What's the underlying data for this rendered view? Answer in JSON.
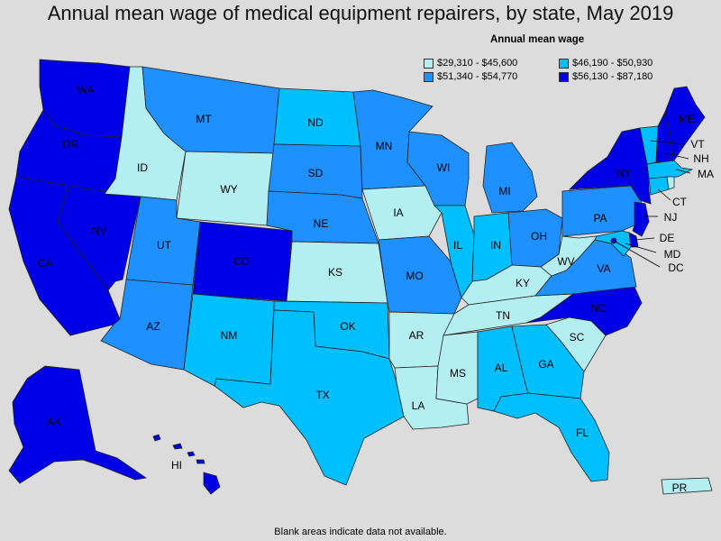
{
  "title": "Annual mean wage of medical equipment repairers, by state, May 2019",
  "legend": {
    "title": "Annual mean wage",
    "items": [
      {
        "label": "$29,310 - $45,600",
        "color": "#b3eef0"
      },
      {
        "label": "$46,190 - $50,930",
        "color": "#00bfff"
      },
      {
        "label": "$51,340 - $54,770",
        "color": "#1e90ff"
      },
      {
        "label": "$56,130 - $87,180",
        "color": "#0000e6"
      }
    ]
  },
  "note": "Blank areas indicate data not available.",
  "states": [
    {
      "code": "WA",
      "tier": 3
    },
    {
      "code": "OR",
      "tier": 3
    },
    {
      "code": "CA",
      "tier": 3
    },
    {
      "code": "NV",
      "tier": 3
    },
    {
      "code": "ID",
      "tier": 0
    },
    {
      "code": "MT",
      "tier": 2
    },
    {
      "code": "WY",
      "tier": 0
    },
    {
      "code": "UT",
      "tier": 2
    },
    {
      "code": "CO",
      "tier": 3
    },
    {
      "code": "AZ",
      "tier": 2
    },
    {
      "code": "NM",
      "tier": 1
    },
    {
      "code": "ND",
      "tier": 1
    },
    {
      "code": "SD",
      "tier": 2
    },
    {
      "code": "NE",
      "tier": 2
    },
    {
      "code": "KS",
      "tier": 0
    },
    {
      "code": "OK",
      "tier": 1
    },
    {
      "code": "TX",
      "tier": 1
    },
    {
      "code": "MN",
      "tier": 2
    },
    {
      "code": "IA",
      "tier": 0
    },
    {
      "code": "MO",
      "tier": 2
    },
    {
      "code": "AR",
      "tier": 0
    },
    {
      "code": "LA",
      "tier": 0
    },
    {
      "code": "WI",
      "tier": 2
    },
    {
      "code": "IL",
      "tier": 1
    },
    {
      "code": "MI",
      "tier": 2
    },
    {
      "code": "IN",
      "tier": 1
    },
    {
      "code": "OH",
      "tier": 2
    },
    {
      "code": "KY",
      "tier": 0
    },
    {
      "code": "TN",
      "tier": 0
    },
    {
      "code": "MS",
      "tier": 0
    },
    {
      "code": "AL",
      "tier": 1
    },
    {
      "code": "GA",
      "tier": 1
    },
    {
      "code": "FL",
      "tier": 1
    },
    {
      "code": "SC",
      "tier": 0
    },
    {
      "code": "NC",
      "tier": 3
    },
    {
      "code": "VA",
      "tier": 2
    },
    {
      "code": "WV",
      "tier": 0
    },
    {
      "code": "PA",
      "tier": 2
    },
    {
      "code": "NY",
      "tier": 3
    },
    {
      "code": "VT",
      "tier": 1
    },
    {
      "code": "NH",
      "tier": 3
    },
    {
      "code": "ME",
      "tier": 3
    },
    {
      "code": "MA",
      "tier": 1
    },
    {
      "code": "CT",
      "tier": 1
    },
    {
      "code": "NJ",
      "tier": 3
    },
    {
      "code": "DE",
      "tier": 3
    },
    {
      "code": "MD",
      "tier": 1
    },
    {
      "code": "DC",
      "tier": 3
    },
    {
      "code": "RI",
      "tier": 0
    },
    {
      "code": "AK",
      "tier": 3
    },
    {
      "code": "HI",
      "tier": 3
    },
    {
      "code": "PR",
      "tier": 0
    }
  ]
}
